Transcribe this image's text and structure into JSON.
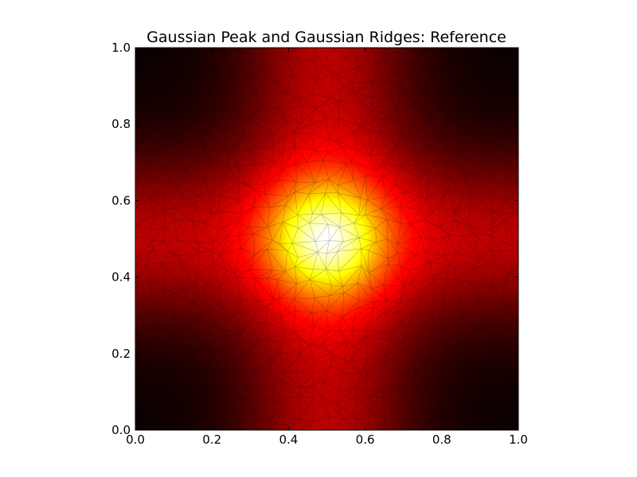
{
  "chart_data": {
    "type": "heatmap",
    "title": "Gaussian Peak and Gaussian Ridges: Reference",
    "xlabel": "",
    "ylabel": "",
    "xlim": [
      0.0,
      1.0
    ],
    "ylim": [
      0.0,
      1.0
    ],
    "xticks": [
      0.0,
      0.2,
      0.4,
      0.6,
      0.8,
      1.0
    ],
    "yticks": [
      0.0,
      0.2,
      0.4,
      0.6,
      0.8,
      1.0
    ],
    "xtick_labels": [
      "0.0",
      "0.2",
      "0.4",
      "0.6",
      "0.8",
      "1.0"
    ],
    "ytick_labels": [
      "0.0",
      "0.2",
      "0.4",
      "0.6",
      "0.8",
      "1.0"
    ],
    "colormap": "hot",
    "function": {
      "center": [
        0.5,
        0.5
      ],
      "ridge_width": 0.15,
      "peak_width": 0.1,
      "ridge_weight": 0.5,
      "peak_weight": 1.0
    },
    "mesh": {
      "type": "triangulation",
      "edge_color": "#000000",
      "approx_points": 650
    },
    "grid": false,
    "colors": {
      "low": "#0b0000",
      "mid": "#ff1e00",
      "high": "#ffffff",
      "mesh": "#000000"
    }
  }
}
